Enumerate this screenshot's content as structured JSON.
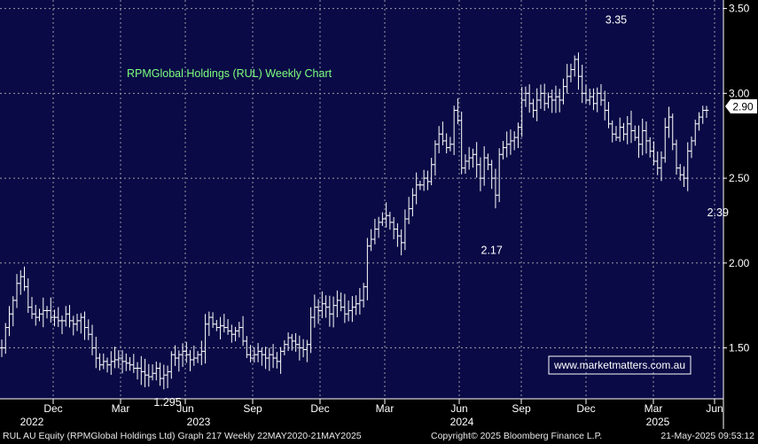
{
  "colors": {
    "plot_bg": "#0a0a46",
    "grid": "#9a9aa8",
    "bars": "#ffffff",
    "title": "#7dff7d",
    "watermark_text": "#ffffff",
    "watermark_border": "#ffffff",
    "last_price_box": "#ffffff",
    "axis_bg": "#000000",
    "axis_text": "#ffffff"
  },
  "chart_data": {
    "type": "ohlc",
    "title": "RPMGlobal Holdings (RUL) Weekly Chart",
    "watermark": "www.marketmatters.com.au",
    "y_ticks": [
      "1.50",
      "2.00",
      "2.50",
      "3.00",
      "3.50"
    ],
    "ylim": [
      1.2,
      3.55
    ],
    "last_price": "2.90",
    "month_labels": [
      "Dec",
      "Mar",
      "Jun",
      "Sep",
      "Dec",
      "Mar",
      "Jun",
      "Sep",
      "Dec",
      "Mar",
      "Jun"
    ],
    "year_labels": [
      "2022",
      "2023",
      "2024",
      "2025"
    ],
    "annotations": [
      {
        "text": "3.35",
        "value": 3.35,
        "week": 163
      },
      {
        "text": "2.17",
        "value": 2.17,
        "week": 130
      },
      {
        "text": "1.295",
        "value": 1.295,
        "week": 44
      },
      {
        "text": "2.39",
        "value": 2.39,
        "week": 190
      }
    ],
    "weekly_close": [
      1.5,
      1.62,
      1.7,
      1.78,
      1.88,
      1.92,
      1.86,
      1.74,
      1.7,
      1.68,
      1.7,
      1.72,
      1.72,
      1.68,
      1.68,
      1.66,
      1.66,
      1.7,
      1.66,
      1.64,
      1.66,
      1.68,
      1.62,
      1.58,
      1.5,
      1.44,
      1.4,
      1.42,
      1.4,
      1.42,
      1.43,
      1.44,
      1.42,
      1.41,
      1.4,
      1.38,
      1.38,
      1.36,
      1.34,
      1.33,
      1.35,
      1.38,
      1.32,
      1.34,
      1.36,
      1.46,
      1.44,
      1.46,
      1.48,
      1.46,
      1.43,
      1.44,
      1.46,
      1.48,
      1.64,
      1.68,
      1.64,
      1.62,
      1.63,
      1.62,
      1.6,
      1.58,
      1.6,
      1.62,
      1.54,
      1.46,
      1.44,
      1.46,
      1.48,
      1.46,
      1.44,
      1.46,
      1.44,
      1.42,
      1.48,
      1.52,
      1.56,
      1.54,
      1.52,
      1.5,
      1.49,
      1.52,
      1.68,
      1.74,
      1.72,
      1.76,
      1.74,
      1.7,
      1.75,
      1.78,
      1.74,
      1.7,
      1.72,
      1.74,
      1.76,
      1.78,
      1.86,
      2.1,
      2.14,
      2.2,
      2.24,
      2.26,
      2.28,
      2.24,
      2.2,
      2.16,
      2.12,
      2.26,
      2.32,
      2.4,
      2.46,
      2.46,
      2.5,
      2.48,
      2.58,
      2.7,
      2.76,
      2.72,
      2.68,
      2.7,
      2.9,
      2.84,
      2.56,
      2.6,
      2.62,
      2.64,
      2.58,
      2.5,
      2.62,
      2.58,
      2.5,
      2.4,
      2.64,
      2.68,
      2.7,
      2.72,
      2.74,
      2.8,
      2.96,
      3.0,
      2.94,
      2.9,
      2.96,
      3.0,
      2.94,
      2.98,
      2.96,
      2.98,
      2.96,
      3.04,
      3.1,
      3.14,
      3.2,
      3.1,
      3.0,
      2.96,
      2.98,
      2.94,
      3.0,
      2.96,
      2.9,
      2.82,
      2.76,
      2.74,
      2.8,
      2.76,
      2.82,
      2.78,
      2.74,
      2.7,
      2.78,
      2.72,
      2.66,
      2.6,
      2.56,
      2.62,
      2.8,
      2.86,
      2.7,
      2.56,
      2.52,
      2.5,
      2.66,
      2.72,
      2.82,
      2.86,
      2.9,
      2.9
    ],
    "x_dates": [
      "22MAY2020",
      "21MAY2025"
    ]
  },
  "footer": {
    "left": "RUL AU Equity (RPMGlobal Holdings Ltd) Graph 217  Weekly 22MAY2020-21MAY2025",
    "mid": "Copyright© 2025 Bloomberg Finance L.P.",
    "right": "21-May-2025 09:53:12"
  }
}
